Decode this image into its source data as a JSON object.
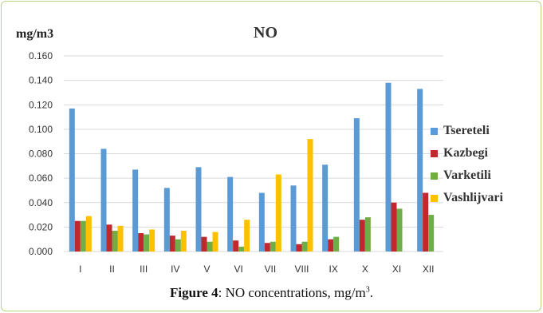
{
  "caption": {
    "label": "Figure 4",
    "separator": ": ",
    "text": "NO concentrations, mg/m",
    "superscript": "3",
    "end": "."
  },
  "chart_data": {
    "type": "bar",
    "title": "NO",
    "ylabel": "mg/m3",
    "xlabel": "",
    "ylim": [
      0,
      0.16
    ],
    "yticks": [
      "0.000",
      "0.020",
      "0.040",
      "0.060",
      "0.080",
      "0.100",
      "0.120",
      "0.140",
      "0.160"
    ],
    "grid": true,
    "legend_position": "right",
    "categories": [
      "I",
      "II",
      "III",
      "IV",
      "V",
      "VI",
      "VII",
      "VIII",
      "IX",
      "X",
      "XI",
      "XII"
    ],
    "series": [
      {
        "name": "Tsereteli",
        "color": "#5b9bd5",
        "values": [
          0.117,
          0.084,
          0.067,
          0.052,
          0.069,
          0.061,
          0.048,
          0.054,
          0.071,
          0.109,
          0.138,
          0.133
        ]
      },
      {
        "name": "Kazbegi",
        "color": "#c0282e",
        "values": [
          0.025,
          0.022,
          0.015,
          0.013,
          0.012,
          0.009,
          0.007,
          0.006,
          0.01,
          0.026,
          0.04,
          0.048
        ]
      },
      {
        "name": "Varketili",
        "color": "#70ad47",
        "values": [
          0.025,
          0.017,
          0.014,
          0.01,
          0.008,
          0.004,
          0.008,
          0.008,
          0.012,
          0.028,
          0.035,
          0.03
        ]
      },
      {
        "name": "Vashlijvari",
        "color": "#ffc000",
        "values": [
          0.029,
          0.021,
          0.018,
          0.017,
          0.016,
          0.026,
          0.063,
          0.092,
          null,
          null,
          null,
          null
        ]
      }
    ]
  }
}
